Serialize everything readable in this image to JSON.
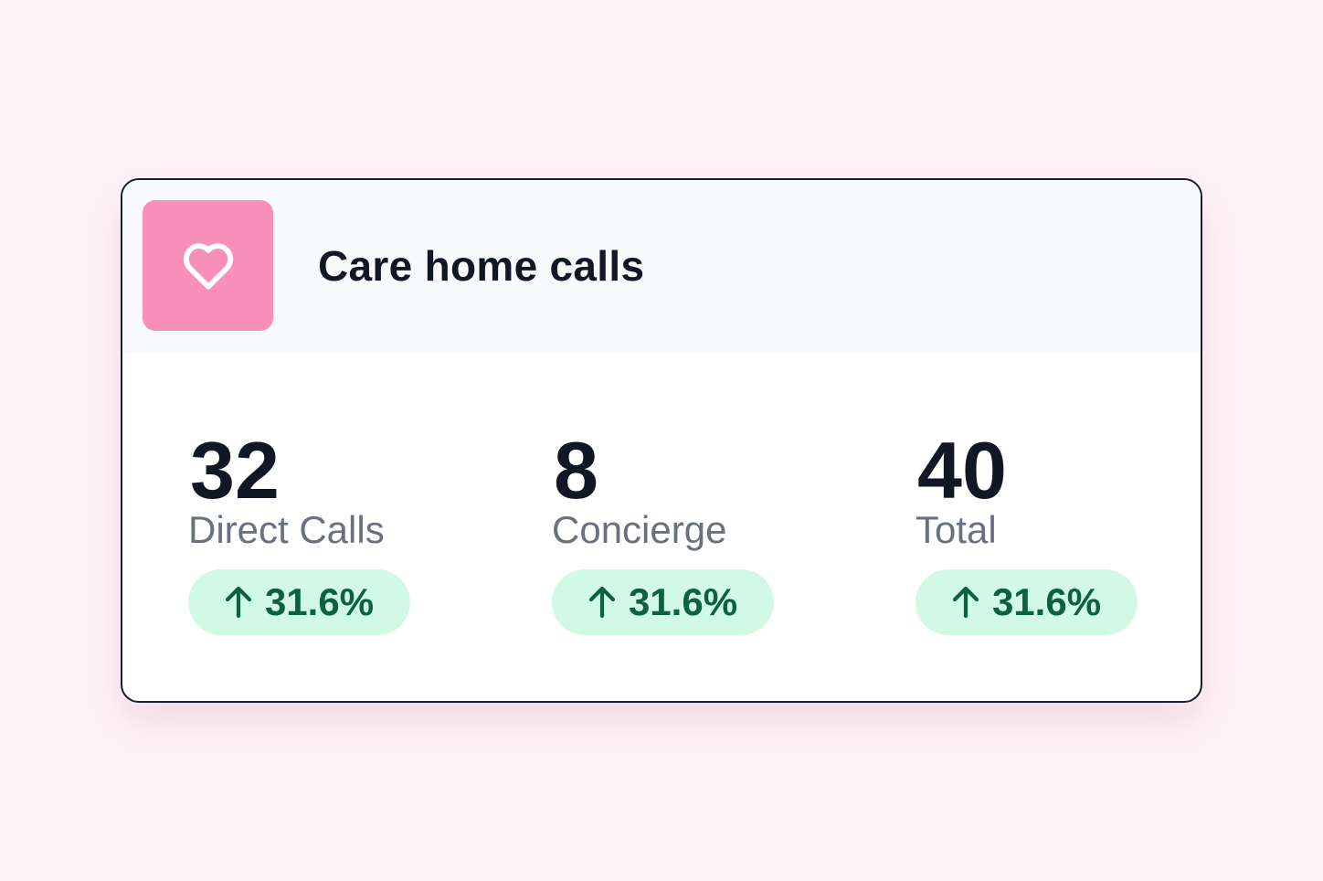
{
  "card": {
    "title": "Care home calls",
    "icon": "heart-icon",
    "icon_tile_color": "#f78fb8"
  },
  "stats": [
    {
      "value": "32",
      "label": "Direct Calls",
      "trend_icon": "arrow-up-icon",
      "change": "31.6%"
    },
    {
      "value": "8",
      "label": "Concierge",
      "trend_icon": "arrow-up-icon",
      "change": "31.6%"
    },
    {
      "value": "40",
      "label": "Total",
      "trend_icon": "arrow-up-icon",
      "change": "31.6%"
    }
  ],
  "colors": {
    "background": "#fff3f7",
    "badge_background": "#d2f8e6",
    "badge_text": "#0c6142",
    "primary_text": "#121726",
    "secondary_text": "#697180"
  }
}
